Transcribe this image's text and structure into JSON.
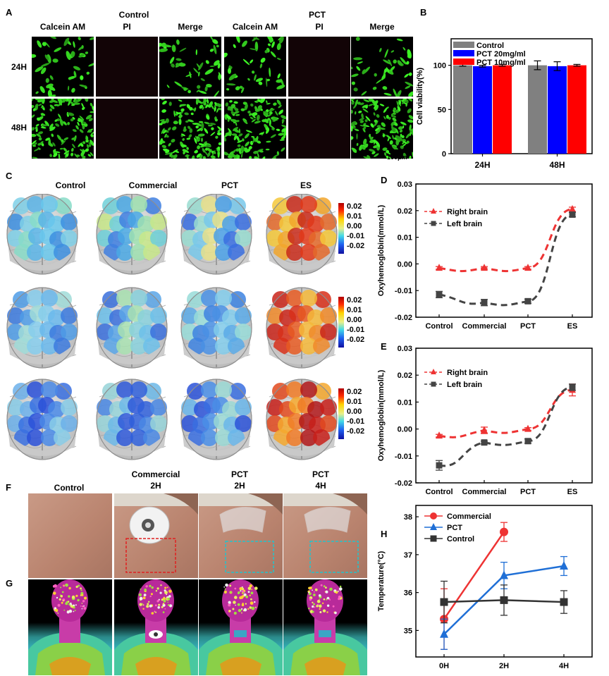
{
  "panels": {
    "A": {
      "letter": "A",
      "group_control": "Control",
      "group_pct": "PCT",
      "columns": [
        "Calcein AM",
        "PI",
        "Merge",
        "Calcein AM",
        "PI",
        "Merge"
      ],
      "rows": [
        "24H",
        "48H"
      ],
      "scale_bar": "100μm"
    },
    "B": {
      "letter": "B"
    },
    "C": {
      "letter": "C",
      "columns": [
        "Control",
        "Commercial",
        "PCT",
        "ES"
      ],
      "colorbar_ticks": [
        "0.02",
        "0.01",
        "0.00",
        "-0.01",
        "-0.02"
      ]
    },
    "D": {
      "letter": "D"
    },
    "E": {
      "letter": "E"
    },
    "F": {
      "letter": "F",
      "columns": [
        {
          "line1": "Control",
          "line2": ""
        },
        {
          "line1": "Commercial",
          "line2": "2H"
        },
        {
          "line1": "PCT",
          "line2": "2H"
        },
        {
          "line1": "PCT",
          "line2": "4H"
        }
      ]
    },
    "G": {
      "letter": "G"
    },
    "H": {
      "letter": "H"
    }
  },
  "chart_data": [
    {
      "id": "B",
      "type": "bar",
      "categories": [
        "24H",
        "48H"
      ],
      "series": [
        {
          "name": "Control",
          "color": "#808080",
          "values": [
            100,
            100
          ],
          "errors": [
            1,
            5
          ]
        },
        {
          "name": "PCT 20mg/ml",
          "color": "#0000ff",
          "values": [
            99,
            99
          ],
          "errors": [
            1,
            5
          ]
        },
        {
          "name": "PCT 10mg/ml",
          "color": "#ff0000",
          "values": [
            100,
            100
          ],
          "errors": [
            1,
            1
          ]
        }
      ],
      "ylabel": "Cell viability(%)",
      "ylim": [
        0,
        130
      ],
      "yticks": [
        0,
        50,
        100
      ],
      "legend": "top-left"
    },
    {
      "id": "D",
      "type": "line",
      "categories": [
        "Control",
        "Commercial",
        "PCT",
        "ES"
      ],
      "series": [
        {
          "name": "Right brain",
          "color": "#ee3333",
          "marker": "triangle",
          "values": [
            -0.0015,
            -0.0015,
            -0.0015,
            0.0205
          ],
          "errors": [
            0.0005,
            0.0005,
            0.0005,
            0.0008
          ]
        },
        {
          "name": "Left brain",
          "color": "#444444",
          "marker": "square",
          "values": [
            -0.0115,
            -0.0145,
            -0.014,
            0.0185
          ],
          "errors": [
            0.0012,
            0.0012,
            0.0008,
            0.0008
          ]
        }
      ],
      "ylabel": "Oxyhemoglobin(mmol/L)",
      "ylim": [
        -0.02,
        0.03
      ],
      "yticks": [
        "-0.02",
        "-0.01",
        "0.00",
        "0.01",
        "0.02",
        "0.03"
      ],
      "ytick_values": [
        -0.02,
        -0.01,
        0,
        0.01,
        0.02,
        0.03
      ],
      "legend": "upper-left"
    },
    {
      "id": "E",
      "type": "line",
      "categories": [
        "Control",
        "Commercial",
        "PCT",
        "ES"
      ],
      "series": [
        {
          "name": "Right brain",
          "color": "#ee3333",
          "marker": "triangle",
          "values": [
            -0.0025,
            -0.0005,
            0.0,
            0.0145
          ],
          "errors": [
            0.0005,
            0.0012,
            0.0005,
            0.0022
          ]
        },
        {
          "name": "Left brain",
          "color": "#444444",
          "marker": "square",
          "values": [
            -0.0135,
            -0.005,
            -0.0045,
            0.0155
          ],
          "errors": [
            0.0018,
            0.0005,
            0.0008,
            0.0012
          ]
        }
      ],
      "ylabel": "Oxyhemoglobin(mmol/L)",
      "ylim": [
        -0.02,
        0.03
      ],
      "yticks": [
        "-0.02",
        "-0.01",
        "0.00",
        "0.01",
        "0.02",
        "0.03"
      ],
      "ytick_values": [
        -0.02,
        -0.01,
        0,
        0.01,
        0.02,
        0.03
      ],
      "legend": "upper-left"
    },
    {
      "id": "H",
      "type": "line",
      "categories": [
        "0H",
        "2H",
        "4H"
      ],
      "series": [
        {
          "name": "Commercial",
          "color": "#ee3333",
          "marker": "circle",
          "values": [
            35.3,
            37.6,
            null
          ],
          "errors": [
            0.8,
            0.25,
            null
          ]
        },
        {
          "name": "PCT",
          "color": "#1f6fd6",
          "marker": "triangle",
          "values": [
            34.9,
            36.45,
            36.7
          ],
          "errors": [
            0.4,
            0.35,
            0.25
          ]
        },
        {
          "name": "Control",
          "color": "#333333",
          "marker": "square",
          "values": [
            35.75,
            35.8,
            35.75
          ],
          "errors": [
            0.55,
            0.4,
            0.3
          ]
        }
      ],
      "ylabel": "Temperature(°C)",
      "ylim": [
        34.3,
        38.3
      ],
      "yticks": [
        "35",
        "36",
        "37",
        "38"
      ],
      "ytick_values": [
        35,
        36,
        37,
        38
      ],
      "legend": "top-left"
    }
  ]
}
